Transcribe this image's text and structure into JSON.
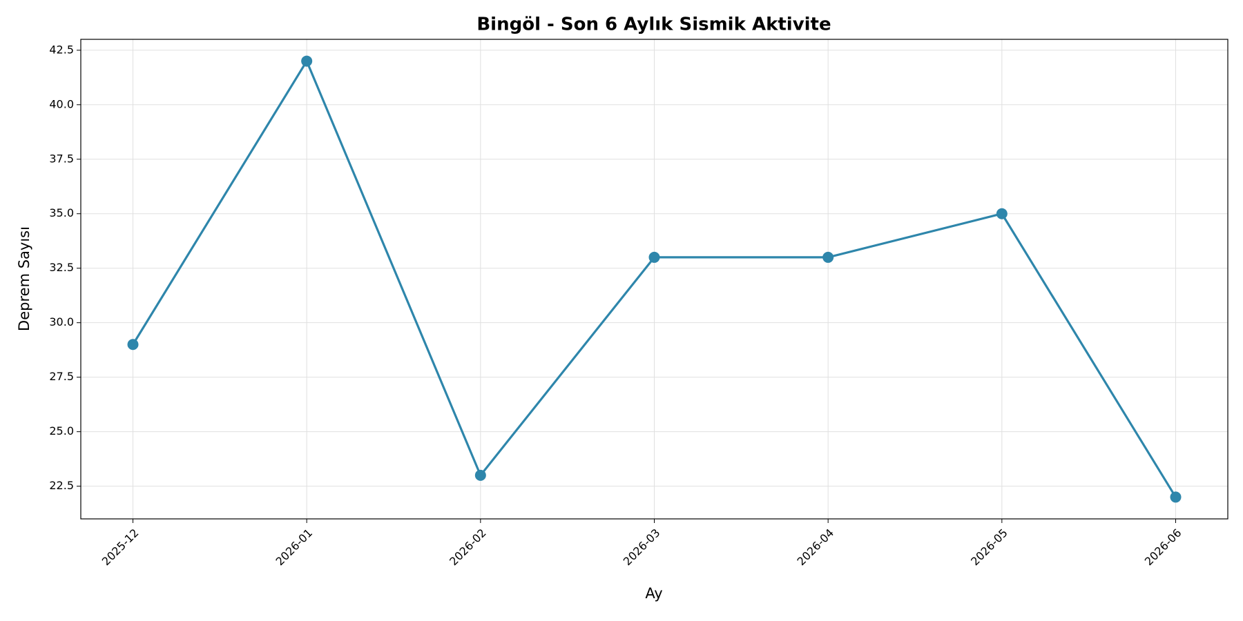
{
  "chart_data": {
    "type": "line",
    "title": "Bingöl - Son 6 Aylık Sismik Aktivite",
    "x_label": "Ay",
    "y_label": "Deprem Sayısı",
    "categories": [
      "2025-12",
      "2026-01",
      "2026-02",
      "2026-03",
      "2026-04",
      "2026-05",
      "2026-06"
    ],
    "series": [
      {
        "name": "Deprem Sayısı",
        "color": "#2e86ab",
        "values": [
          29,
          42,
          23,
          33,
          33,
          35,
          22
        ]
      }
    ],
    "ylim": [
      21,
      43
    ],
    "yticks": [
      22.5,
      {
        "value": 25,
        "label": "25.0"
      },
      27.5,
      {
        "value": 30,
        "label": "30.0"
      },
      32.5,
      {
        "value": 35,
        "label": "35.0"
      },
      37.5,
      {
        "value": 40,
        "label": "40.0"
      },
      42.5
    ],
    "grid": true
  }
}
